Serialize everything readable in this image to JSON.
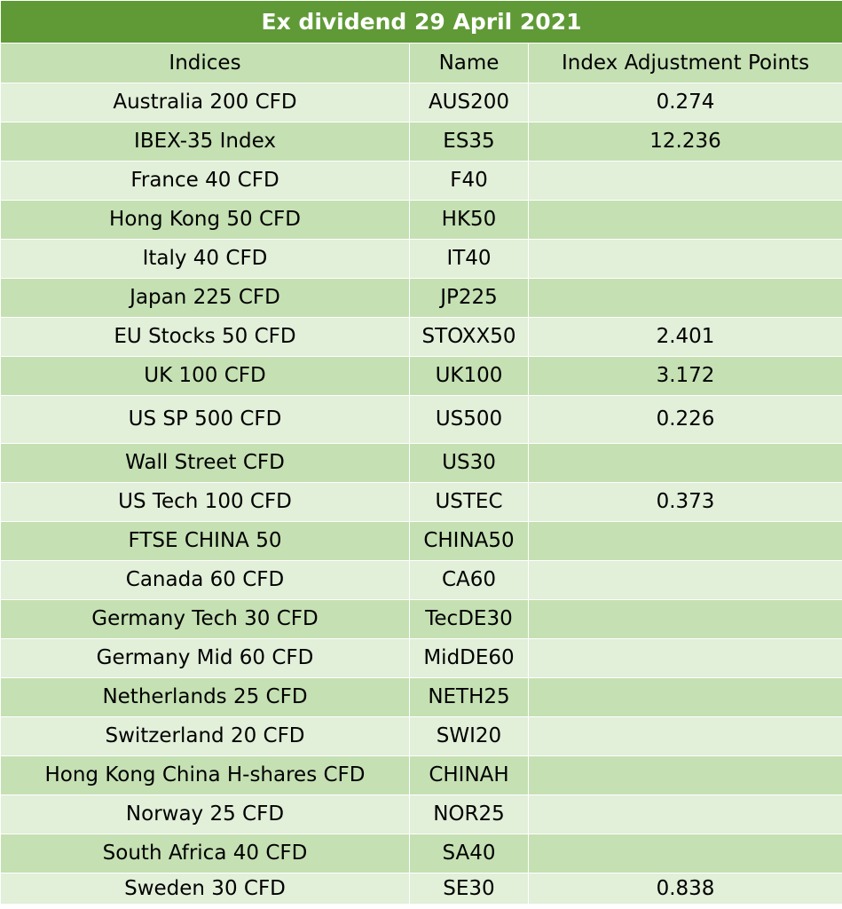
{
  "table": {
    "title": "Ex dividend 29 April 2021",
    "headers": [
      "Indices",
      "Name",
      "Index Adjustment Points"
    ],
    "rows": [
      [
        "Australia 200 CFD",
        "AUS200",
        "0.274"
      ],
      [
        "IBEX-35 Index",
        "ES35",
        "12.236"
      ],
      [
        "France 40 CFD",
        "F40",
        ""
      ],
      [
        "Hong Kong 50 CFD",
        "HK50",
        ""
      ],
      [
        "Italy 40 CFD",
        "IT40",
        ""
      ],
      [
        "Japan 225 CFD",
        "JP225",
        ""
      ],
      [
        "EU Stocks 50 CFD",
        "STOXX50",
        "2.401"
      ],
      [
        "UK 100 CFD",
        "UK100",
        "3.172"
      ],
      [
        "US SP 500 CFD",
        "US500",
        "0.226"
      ],
      [
        "Wall Street CFD",
        "US30",
        ""
      ],
      [
        "US Tech 100 CFD",
        "USTEC",
        "0.373"
      ],
      [
        "FTSE CHINA 50",
        "CHINA50",
        ""
      ],
      [
        "Canada 60 CFD",
        "CA60",
        ""
      ],
      [
        "Germany Tech 30 CFD",
        "TecDE30",
        ""
      ],
      [
        "Germany Mid 60 CFD",
        "MidDE60",
        ""
      ],
      [
        "Netherlands 25 CFD",
        "NETH25",
        ""
      ],
      [
        "Switzerland 20 CFD",
        "SWI20",
        ""
      ],
      [
        "Hong Kong China H-shares CFD",
        "CHINAH",
        ""
      ],
      [
        "Norway 25 CFD",
        "NOR25",
        ""
      ],
      [
        "South Africa 40 CFD",
        "SA40",
        ""
      ],
      [
        "Sweden 30 CFD",
        "SE30",
        "0.838"
      ]
    ]
  },
  "colors": {
    "title_bg": "#5f9a36",
    "title_text": "#ffffff",
    "row_light": "#e2efd9",
    "row_dark": "#c5e0b3"
  }
}
